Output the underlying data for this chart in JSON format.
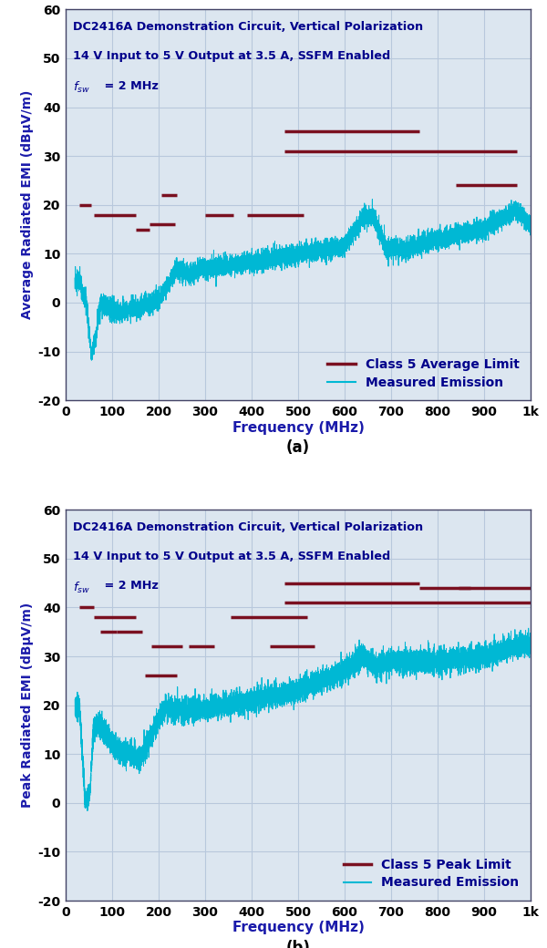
{
  "fig_width": 6.0,
  "fig_height": 10.4,
  "dpi": 100,
  "bg_color": "#dce6f0",
  "grid_color": "#b8c8dc",
  "limit_color": "#7a1020",
  "emission_color": "#00b8d4",
  "title_color": "#00008b",
  "axis_label_color": "#1a1aaa",
  "tick_color": "#000000",
  "subplot_a": {
    "title_line1": "DC2416A Demonstration Circuit, Vertical Polarization",
    "title_line2": "14 V Input to 5 V Output at 3.5 A, SSFM Enabled",
    "ylabel": "Average Radiated EMI (dBµV/m)",
    "xlabel": "Frequency (MHz)",
    "label": "(a)",
    "xlim": [
      0,
      1000
    ],
    "ylim": [
      -20,
      60
    ],
    "yticks": [
      -20,
      -10,
      0,
      10,
      20,
      30,
      40,
      50,
      60
    ],
    "xticks": [
      0,
      100,
      200,
      300,
      400,
      500,
      600,
      700,
      800,
      900,
      1000
    ],
    "xticklabels": [
      "0",
      "100",
      "200",
      "300",
      "400",
      "500",
      "600",
      "700",
      "800",
      "900",
      "1k"
    ],
    "legend_label1": "Class 5 Average Limit",
    "legend_label2": "Measured Emission",
    "limit_lines": [
      [
        30,
        55,
        20
      ],
      [
        60,
        150,
        18
      ],
      [
        150,
        180,
        15
      ],
      [
        180,
        235,
        16
      ],
      [
        205,
        240,
        22
      ],
      [
        300,
        360,
        18
      ],
      [
        390,
        512,
        18
      ],
      [
        470,
        760,
        35
      ],
      [
        470,
        970,
        31
      ],
      [
        840,
        970,
        24
      ]
    ]
  },
  "subplot_b": {
    "title_line1": "DC2416A Demonstration Circuit, Vertical Polarization",
    "title_line2": "14 V Input to 5 V Output at 3.5 A, SSFM Enabled",
    "ylabel": "Peak Radiated EMI (dBµV/m)",
    "xlabel": "Frequency (MHz)",
    "label": "(b)",
    "xlim": [
      0,
      1000
    ],
    "ylim": [
      -20,
      60
    ],
    "yticks": [
      -20,
      -10,
      0,
      10,
      20,
      30,
      40,
      50,
      60
    ],
    "xticks": [
      0,
      100,
      200,
      300,
      400,
      500,
      600,
      700,
      800,
      900,
      1000
    ],
    "xticklabels": [
      "0",
      "100",
      "200",
      "300",
      "400",
      "500",
      "600",
      "700",
      "800",
      "900",
      "1k"
    ],
    "legend_label1": "Class 5 Peak Limit",
    "legend_label2": "Measured Emission",
    "limit_lines": [
      [
        30,
        60,
        40
      ],
      [
        60,
        150,
        38
      ],
      [
        75,
        110,
        35
      ],
      [
        110,
        165,
        35
      ],
      [
        170,
        240,
        26
      ],
      [
        185,
        250,
        32
      ],
      [
        265,
        320,
        32
      ],
      [
        355,
        520,
        38
      ],
      [
        440,
        535,
        32
      ],
      [
        470,
        760,
        45
      ],
      [
        760,
        870,
        44
      ],
      [
        845,
        1000,
        44
      ],
      [
        470,
        1000,
        41
      ]
    ]
  }
}
